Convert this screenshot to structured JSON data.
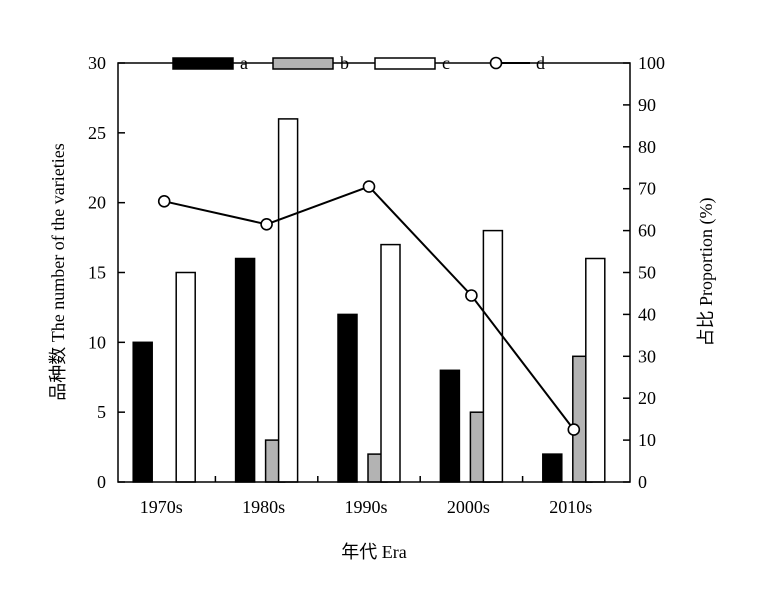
{
  "chart_data": {
    "type": "bar",
    "categories": [
      "1970s",
      "1980s",
      "1990s",
      "2000s",
      "2010s"
    ],
    "series": [
      {
        "name": "a",
        "kind": "bar",
        "axis": "left",
        "color": "#000000",
        "values": [
          10,
          16,
          12,
          8,
          2
        ]
      },
      {
        "name": "b",
        "kind": "bar",
        "axis": "left",
        "color": "#b3b3b3",
        "values": [
          0,
          3,
          2,
          5,
          9
        ]
      },
      {
        "name": "c",
        "kind": "bar",
        "axis": "left",
        "color": "#ffffff",
        "values": [
          15,
          26,
          17,
          18,
          16
        ]
      },
      {
        "name": "d",
        "kind": "line",
        "axis": "right",
        "color": "#000000",
        "values": [
          67,
          61.5,
          70.5,
          44.5,
          12.5
        ]
      }
    ],
    "xlabel": "年代 Era",
    "ylabel": "品种数 The number of the varieties",
    "y2label": "占比 Proportion (%)",
    "ylim": [
      0,
      30
    ],
    "y2lim": [
      0,
      100
    ],
    "yticks": [
      "0",
      "5",
      "10",
      "15",
      "20",
      "25",
      "30"
    ],
    "y2ticks": [
      "0",
      "10",
      "20",
      "30",
      "40",
      "50",
      "60",
      "70",
      "80",
      "90",
      "100"
    ],
    "grid": false,
    "legend": "top"
  }
}
